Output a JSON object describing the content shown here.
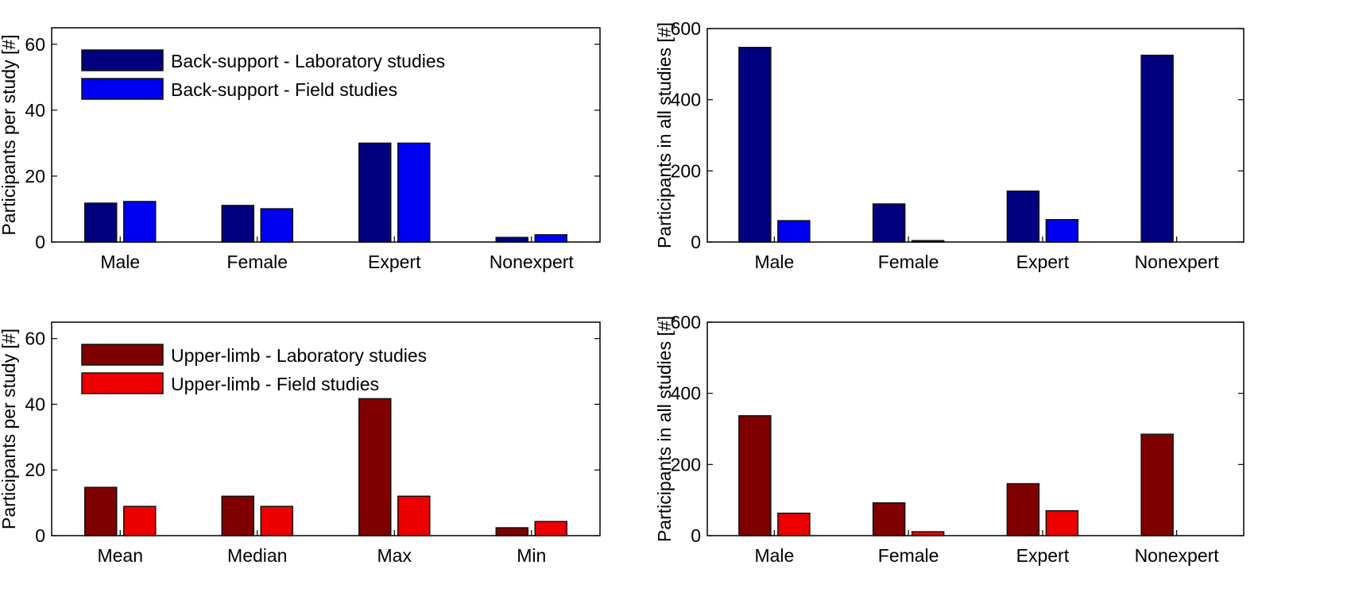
{
  "colors": {
    "bs_lab": "#000080",
    "bs_field": "#0000f0",
    "ul_lab": "#800000",
    "ul_field": "#ee0000"
  },
  "chart_data": [
    {
      "type": "bar",
      "ylabel": "Participants per study [#]",
      "categories": [
        "Male",
        "Female",
        "Expert",
        "Nonexpert"
      ],
      "ylim": [
        0,
        65
      ],
      "yticks": [
        0,
        20,
        40,
        60
      ],
      "legend": "top-left",
      "series": [
        {
          "name": "Back-support - Laboratory studies",
          "color": "#000080",
          "values": [
            11.8,
            11.1,
            30,
            1.4
          ]
        },
        {
          "name": "Back-support - Field studies",
          "color": "#0000f0",
          "values": [
            12.3,
            10.1,
            30,
            2.2
          ]
        }
      ]
    },
    {
      "type": "bar",
      "ylabel": "Participants in all studies [#]",
      "categories": [
        "Male",
        "Female",
        "Expert",
        "Nonexpert"
      ],
      "ylim": [
        0,
        600
      ],
      "yticks": [
        0,
        200,
        400,
        600
      ],
      "series": [
        {
          "color": "#000080",
          "values": [
            547,
            107,
            143,
            525
          ]
        },
        {
          "color": "#0000f0",
          "values": [
            60,
            4,
            63,
            0
          ]
        }
      ]
    },
    {
      "type": "bar",
      "ylabel": "Participants per study [#]",
      "categories": [
        "Mean",
        "Median",
        "Max",
        "Min"
      ],
      "ylim": [
        0,
        65
      ],
      "yticks": [
        0,
        20,
        40,
        60
      ],
      "legend": "top-left",
      "series": [
        {
          "name": "Upper-limb - Laboratory studies",
          "color": "#800000",
          "values": [
            14.7,
            12,
            41.7,
            2.4
          ]
        },
        {
          "name": "Upper-limb - Field studies",
          "color": "#ee0000",
          "values": [
            8.9,
            8.9,
            12,
            4.3
          ]
        }
      ]
    },
    {
      "type": "bar",
      "ylabel": "Participants in all studies [#]",
      "categories": [
        "Male",
        "Female",
        "Expert",
        "Nonexpert"
      ],
      "ylim": [
        0,
        600
      ],
      "yticks": [
        0,
        200,
        400,
        600
      ],
      "series": [
        {
          "color": "#800000",
          "values": [
            337,
            92,
            146,
            285
          ]
        },
        {
          "color": "#ee0000",
          "values": [
            63,
            11,
            70,
            0
          ]
        }
      ]
    }
  ]
}
